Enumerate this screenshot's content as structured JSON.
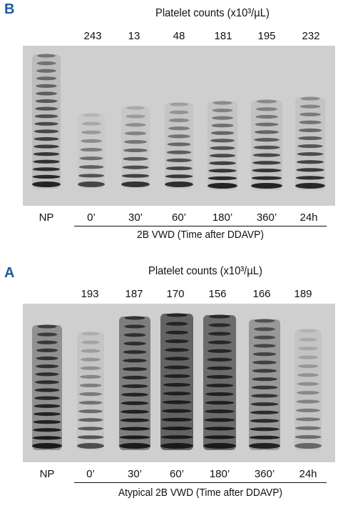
{
  "panels": [
    {
      "letter": "B",
      "platelet_title": "Platelet counts (x10³/µL)",
      "platelet_counts": [
        "243",
        "13",
        "48",
        "181",
        "195",
        "232"
      ],
      "lane_labels": [
        "NP",
        "0’",
        "30’",
        "60’",
        "180’",
        "360’",
        "24h"
      ],
      "caption": "2B VWD (Time after DDAVP)"
    },
    {
      "letter": "A",
      "platelet_title": "Platelet counts (x10³/µL)",
      "platelet_counts": [
        "193",
        "187",
        "170",
        "156",
        "166",
        "189"
      ],
      "lane_labels": [
        "NP",
        "0’",
        "30’",
        "60’",
        "180’",
        "360’",
        "24h"
      ],
      "caption": "Atypical 2B VWD (Time after DDAVP)"
    }
  ],
  "colors": {
    "panel_letter": "#1a5aa6",
    "gel_background": "#cfcfcf",
    "band": "#1a1a1a"
  }
}
